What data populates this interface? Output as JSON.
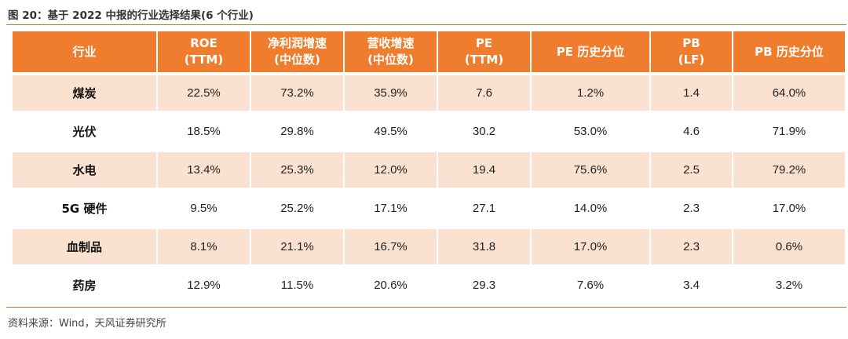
{
  "title": "图 20：基于 2022 中报的行业选择结果(6 个行业)",
  "table": {
    "headers": [
      [
        "行业"
      ],
      [
        "ROE",
        "(TTM)"
      ],
      [
        "净利润增速",
        "(中位数)"
      ],
      [
        "营收增速",
        "(中位数)"
      ],
      [
        "PE",
        "(TTM)"
      ],
      [
        "PE 历史分位"
      ],
      [
        "PB",
        "(LF)"
      ],
      [
        "PB 历史分位"
      ]
    ],
    "rows": [
      [
        "煤炭",
        "22.5%",
        "73.2%",
        "35.9%",
        "7.6",
        "1.2%",
        "1.4",
        "64.0%"
      ],
      [
        "光伏",
        "18.5%",
        "29.8%",
        "49.5%",
        "30.2",
        "53.0%",
        "4.6",
        "71.9%"
      ],
      [
        "水电",
        "13.4%",
        "25.3%",
        "12.0%",
        "19.4",
        "75.6%",
        "2.5",
        "79.2%"
      ],
      [
        "5G 硬件",
        "9.5%",
        "25.2%",
        "17.1%",
        "27.1",
        "14.0%",
        "2.3",
        "17.0%"
      ],
      [
        "血制品",
        "8.1%",
        "21.1%",
        "16.7%",
        "31.8",
        "17.0%",
        "2.3",
        "0.6%"
      ],
      [
        "药房",
        "12.9%",
        "11.5%",
        "20.6%",
        "29.3",
        "7.6%",
        "3.4",
        "3.2%"
      ]
    ]
  },
  "source": "资料来源：Wind，天风证券研究所",
  "colors": {
    "header_bg": "#ef7d2d",
    "shade_row": "#fbe1cf",
    "rule": "#e0701f"
  }
}
